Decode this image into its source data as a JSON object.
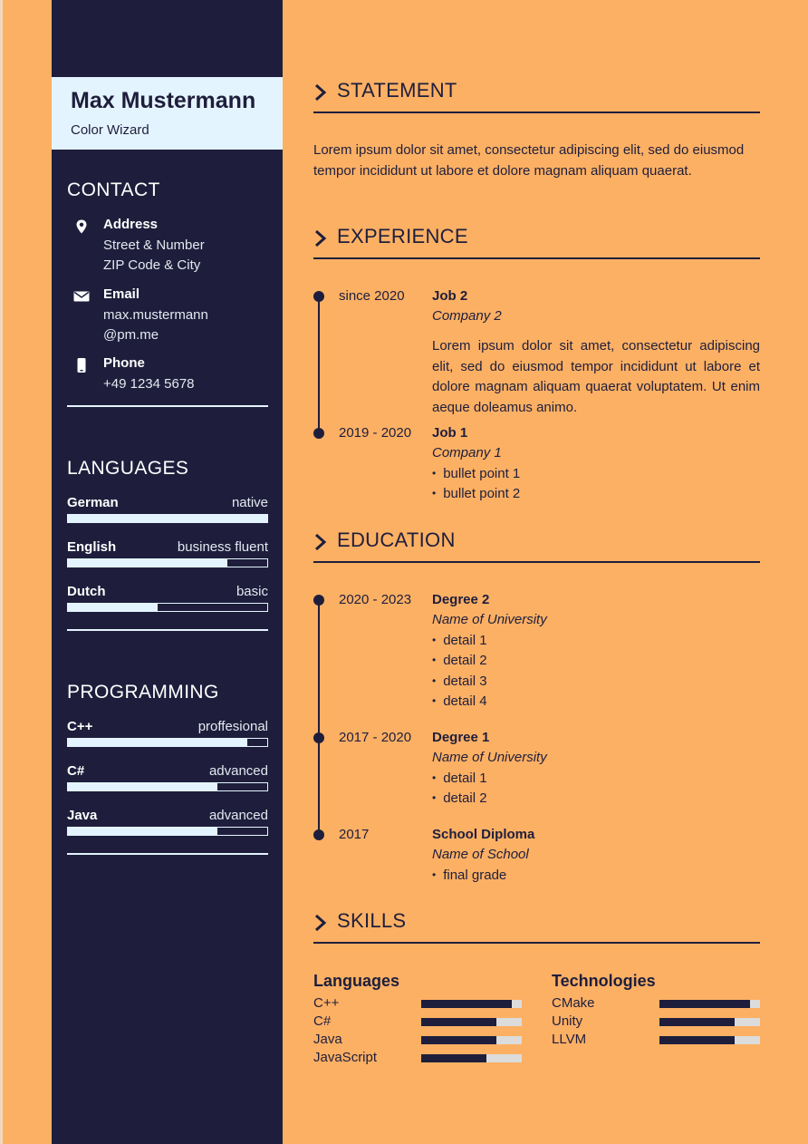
{
  "colors": {
    "page_bg": "#fcb064",
    "sidebar_bg": "#1e1e3c",
    "name_box_bg": "#e4f4fe",
    "bar_track": "#dcdcdc"
  },
  "header": {
    "name": "Max Mustermann",
    "title": "Color Wizard"
  },
  "contact": {
    "heading": "CONTACT",
    "items": [
      {
        "icon": "location-pin-icon",
        "label": "Address",
        "lines": [
          "Street & Number",
          "ZIP Code & City"
        ]
      },
      {
        "icon": "envelope-icon",
        "label": "Email",
        "lines": [
          "max.mustermann",
          "@pm.me"
        ]
      },
      {
        "icon": "phone-icon",
        "label": "Phone",
        "lines": [
          "+49 1234 5678"
        ]
      }
    ]
  },
  "languages": {
    "heading": "LANGUAGES",
    "items": [
      {
        "name": "German",
        "level": "native",
        "fraction": 1.0
      },
      {
        "name": "English",
        "level": "business fluent",
        "fraction": 0.8
      },
      {
        "name": "Dutch",
        "level": "basic",
        "fraction": 0.45
      }
    ]
  },
  "programming": {
    "heading": "PROGRAMMING",
    "items": [
      {
        "name": "C++",
        "level": "proffesional",
        "fraction": 0.9
      },
      {
        "name": "C#",
        "level": "advanced",
        "fraction": 0.75
      },
      {
        "name": "Java",
        "level": "advanced",
        "fraction": 0.75
      }
    ]
  },
  "statement": {
    "heading": "STATEMENT",
    "text": "Lorem ipsum dolor sit amet, consectetur adipiscing elit, sed do eiusmod tempor incididunt ut labore et dolore magnam aliquam quaerat."
  },
  "experience": {
    "heading": "EXPERIENCE",
    "entries": [
      {
        "date": "since 2020",
        "title": "Job 2",
        "subtitle": "Company 2",
        "description": "Lorem ipsum dolor sit amet, consectetur adipiscing elit, sed do eiusmod tempor incididunt ut labore et dolore magnam aliquam quaerat voluptatem. Ut enim aeque doleamus animo.",
        "bullets": []
      },
      {
        "date": "2019 - 2020",
        "title": "Job 1",
        "subtitle": "Company 1",
        "description": "",
        "bullets": [
          "bullet point 1",
          "bullet point 2"
        ]
      }
    ]
  },
  "education": {
    "heading": "EDUCATION",
    "entries": [
      {
        "date": "2020 - 2023",
        "title": "Degree 2",
        "subtitle": "Name of University",
        "bullets": [
          "detail 1",
          "detail 2",
          "detail 3",
          "detail 4"
        ]
      },
      {
        "date": "2017 - 2020",
        "title": "Degree 1",
        "subtitle": "Name of University",
        "bullets": [
          "detail 1",
          "detail 2"
        ]
      },
      {
        "date": "2017",
        "title": "School Diploma",
        "subtitle": "Name of School",
        "bullets": [
          "final grade"
        ]
      }
    ]
  },
  "skills": {
    "heading": "SKILLS",
    "columns": [
      {
        "title": "Languages",
        "items": [
          {
            "name": "C++",
            "fraction": 0.9
          },
          {
            "name": "C#",
            "fraction": 0.75
          },
          {
            "name": "Java",
            "fraction": 0.75
          },
          {
            "name": "JavaScript",
            "fraction": 0.65
          }
        ]
      },
      {
        "title": "Technologies",
        "items": [
          {
            "name": "CMake",
            "fraction": 0.9
          },
          {
            "name": "Unity",
            "fraction": 0.75
          },
          {
            "name": "LLVM",
            "fraction": 0.75
          }
        ]
      }
    ]
  }
}
